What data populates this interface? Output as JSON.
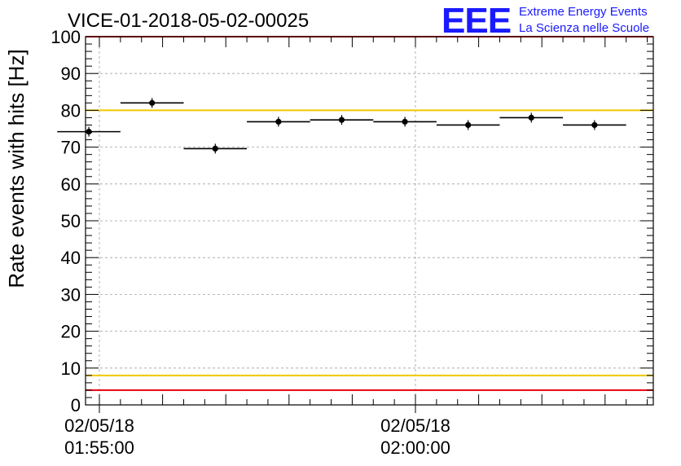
{
  "chart_data": {
    "type": "scatter",
    "title": "VICE-01-2018-05-02-00025",
    "ylabel": "Rate events with hits [Hz]",
    "xlabel": "",
    "ylim": [
      0,
      100
    ],
    "y_ticks": [
      "0",
      "10",
      "20",
      "30",
      "40",
      "50",
      "60",
      "70",
      "80",
      "90",
      "100"
    ],
    "x_ticks": [
      {
        "date": "02/05/18",
        "time": "01:55:00"
      },
      {
        "date": "02/05/18",
        "time": "02:00:00"
      }
    ],
    "grid": true,
    "logo": {
      "mark": "EEE",
      "line1": "Extreme Energy Events",
      "line2": "La Scienza nelle Scuole"
    },
    "series": [
      {
        "bin_width_minutes": 1,
        "points": [
          {
            "x": "01:54:50",
            "y": 74.2
          },
          {
            "x": "01:55:50",
            "y": 82.0
          },
          {
            "x": "01:56:50",
            "y": 69.6
          },
          {
            "x": "01:57:50",
            "y": 76.9
          },
          {
            "x": "01:58:50",
            "y": 77.4
          },
          {
            "x": "01:59:50",
            "y": 76.9
          },
          {
            "x": "02:00:50",
            "y": 76.0
          },
          {
            "x": "02:01:50",
            "y": 78.0
          },
          {
            "x": "02:02:50",
            "y": 76.0
          }
        ]
      }
    ],
    "reference_lines": [
      {
        "y": 80,
        "color": "#f0c800"
      },
      {
        "y": 8,
        "color": "#f0c800"
      },
      {
        "y": 100,
        "color": "#e8000b"
      },
      {
        "y": 4,
        "color": "#e8000b"
      }
    ],
    "colors": {
      "marker": "#000000",
      "grid": "#9a9a9a",
      "logo": "#1a1aff"
    }
  }
}
